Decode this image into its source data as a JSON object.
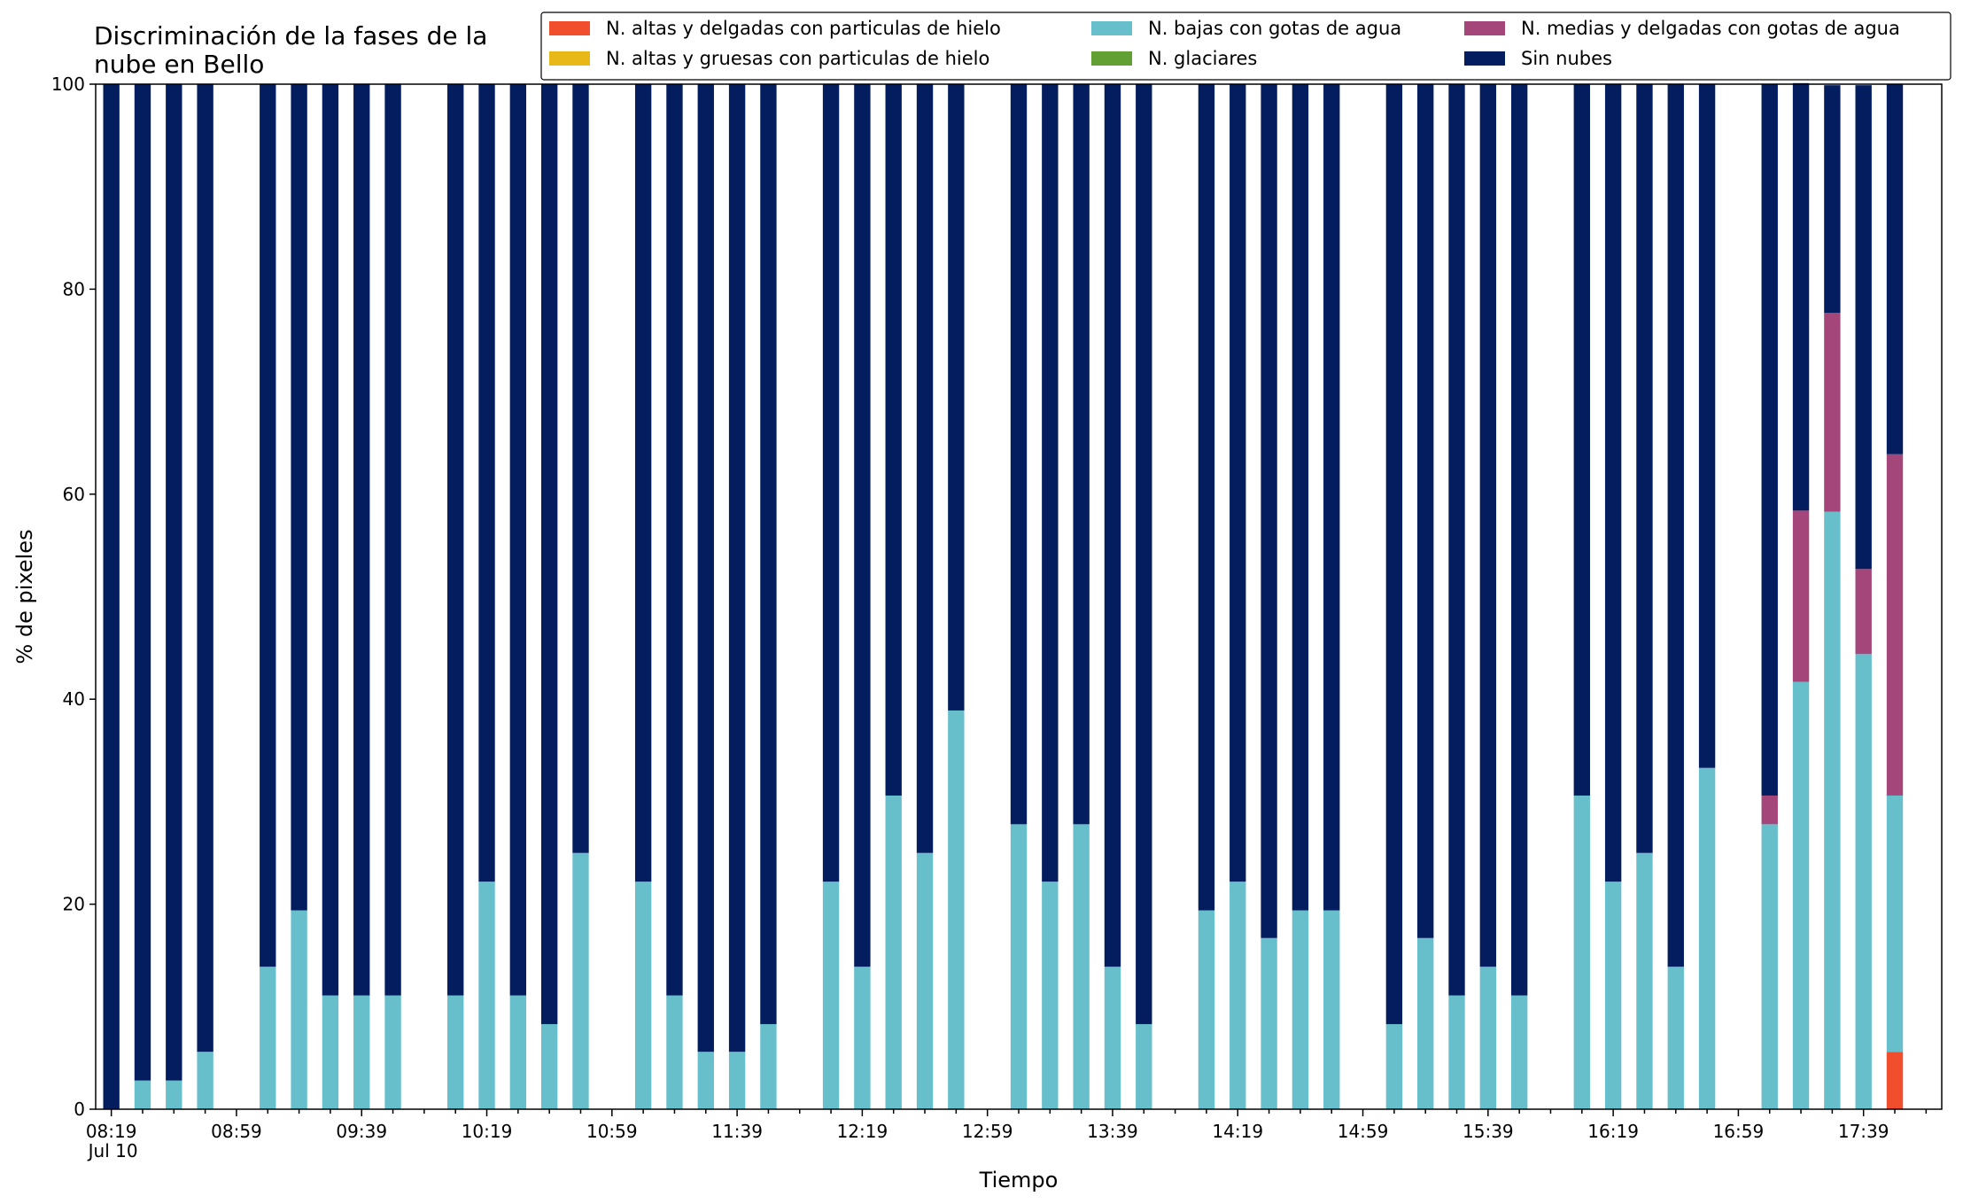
{
  "chart_data": {
    "type": "bar",
    "stacked": true,
    "title": "Discriminación de la fases de la\nnube en Bello",
    "xlabel": "Tiempo",
    "ylabel": "% de pixeles",
    "ylim": [
      0,
      100
    ],
    "yticks": [
      0,
      20,
      40,
      60,
      80,
      100
    ],
    "xticks": [
      "08:19\nJul 10",
      "08:59",
      "09:39",
      "10:19",
      "10:59",
      "11:39",
      "12:19",
      "12:59",
      "13:39",
      "14:19",
      "14:59",
      "15:39",
      "16:19",
      "16:59",
      "17:39"
    ],
    "grid": false,
    "legend_position": "top",
    "categories": [
      "08:19",
      "08:29",
      "08:39",
      "08:49",
      "08:59",
      "09:09",
      "09:19",
      "09:29",
      "09:39",
      "09:49",
      "09:59",
      "10:09",
      "10:19",
      "10:29",
      "10:39",
      "10:49",
      "10:59",
      "11:09",
      "11:19",
      "11:29",
      "11:39",
      "11:49",
      "11:59",
      "12:09",
      "12:19",
      "12:29",
      "12:39",
      "12:49",
      "12:59",
      "13:09",
      "13:19",
      "13:29",
      "13:39",
      "13:49",
      "13:59",
      "14:09",
      "14:19",
      "14:29",
      "14:39",
      "14:49",
      "14:59",
      "15:09",
      "15:19",
      "15:29",
      "15:39",
      "15:49",
      "15:59",
      "16:09",
      "16:19",
      "16:29",
      "16:39",
      "16:49",
      "16:59",
      "17:09",
      "17:19",
      "17:29",
      "17:39",
      "17:49"
    ],
    "series": [
      {
        "name": "N. altas y delgadas con particulas de hielo",
        "color": "#f04e2d",
        "values": [
          0,
          0,
          0,
          0,
          null,
          0,
          0,
          0,
          0,
          0,
          null,
          0,
          0,
          0,
          0,
          0,
          null,
          0,
          0,
          0,
          0,
          0,
          null,
          0,
          0,
          0,
          0,
          0,
          null,
          0,
          0,
          0,
          0,
          0,
          null,
          0,
          0,
          0,
          0,
          0,
          null,
          0,
          0,
          0,
          0,
          0,
          null,
          0,
          0,
          0,
          0,
          0,
          null,
          0,
          0,
          0,
          0,
          5.6
        ]
      },
      {
        "name": "N. altas y gruesas con particulas de hielo",
        "color": "#e8b718",
        "values": [
          0,
          0,
          0,
          0,
          null,
          0,
          0,
          0,
          0,
          0,
          null,
          0,
          0,
          0,
          0,
          0,
          null,
          0,
          0,
          0,
          0,
          0,
          null,
          0,
          0,
          0,
          0,
          0,
          null,
          0,
          0,
          0,
          0,
          0,
          null,
          0,
          0,
          0,
          0,
          0,
          null,
          0,
          0,
          0,
          0,
          0,
          null,
          0,
          0,
          0,
          0,
          0,
          null,
          0,
          0,
          0,
          0,
          0
        ]
      },
      {
        "name": "N. bajas con gotas de agua",
        "color": "#67bfcc",
        "values": [
          0,
          2.8,
          2.8,
          5.6,
          null,
          13.9,
          19.4,
          11.1,
          11.1,
          11.1,
          null,
          11.1,
          22.2,
          11.1,
          8.3,
          25,
          null,
          22.2,
          11.1,
          5.6,
          5.6,
          8.3,
          null,
          22.2,
          13.9,
          30.6,
          25,
          38.9,
          null,
          27.8,
          22.2,
          27.8,
          13.9,
          8.3,
          null,
          19.4,
          22.2,
          16.7,
          19.4,
          19.4,
          null,
          8.3,
          16.7,
          11.1,
          13.9,
          11.1,
          null,
          30.6,
          22.2,
          25,
          13.9,
          33.3,
          null,
          27.8,
          41.7,
          58.3,
          44.4,
          25
        ]
      },
      {
        "name": "N. glaciares",
        "color": "#62a033",
        "values": [
          0,
          0,
          0,
          0,
          null,
          0,
          0,
          0,
          0,
          0,
          null,
          0,
          0,
          0,
          0,
          0,
          null,
          0,
          0,
          0,
          0,
          0,
          null,
          0,
          0,
          0,
          0,
          0,
          null,
          0,
          0,
          0,
          0,
          0,
          null,
          0,
          0,
          0,
          0,
          0,
          null,
          0,
          0,
          0,
          0,
          0,
          null,
          0,
          0,
          0,
          0,
          0,
          null,
          0,
          0,
          0,
          0,
          0
        ]
      },
      {
        "name": "N. medias y delgadas con gotas de agua",
        "color": "#a44679",
        "values": [
          0,
          0,
          0,
          0,
          null,
          0,
          0,
          0,
          0,
          0,
          null,
          0,
          0,
          0,
          0,
          0,
          null,
          0,
          0,
          0,
          0,
          0,
          null,
          0,
          0,
          0,
          0,
          0,
          null,
          0,
          0,
          0,
          0,
          0,
          null,
          0,
          0,
          0,
          0,
          0,
          null,
          0,
          0,
          0,
          0,
          0,
          null,
          0,
          0,
          0,
          0,
          0,
          null,
          2.8,
          16.7,
          19.4,
          8.3,
          33.3
        ]
      },
      {
        "name": "Sin nubes",
        "color": "#031d5f",
        "values": [
          100,
          97.2,
          97.2,
          94.4,
          null,
          86.1,
          80.6,
          88.9,
          88.9,
          88.9,
          null,
          88.9,
          77.8,
          88.9,
          91.7,
          75,
          null,
          77.8,
          88.9,
          94.4,
          94.4,
          91.7,
          null,
          77.8,
          86.1,
          69.4,
          75,
          61.1,
          null,
          72.2,
          77.8,
          72.2,
          86.1,
          91.7,
          null,
          80.6,
          77.8,
          83.3,
          80.6,
          80.6,
          null,
          91.7,
          83.3,
          88.9,
          86.1,
          88.9,
          null,
          69.4,
          77.8,
          75,
          86.1,
          66.7,
          null,
          69.4,
          41.7,
          22.2,
          47.2,
          36.1
        ]
      }
    ]
  }
}
